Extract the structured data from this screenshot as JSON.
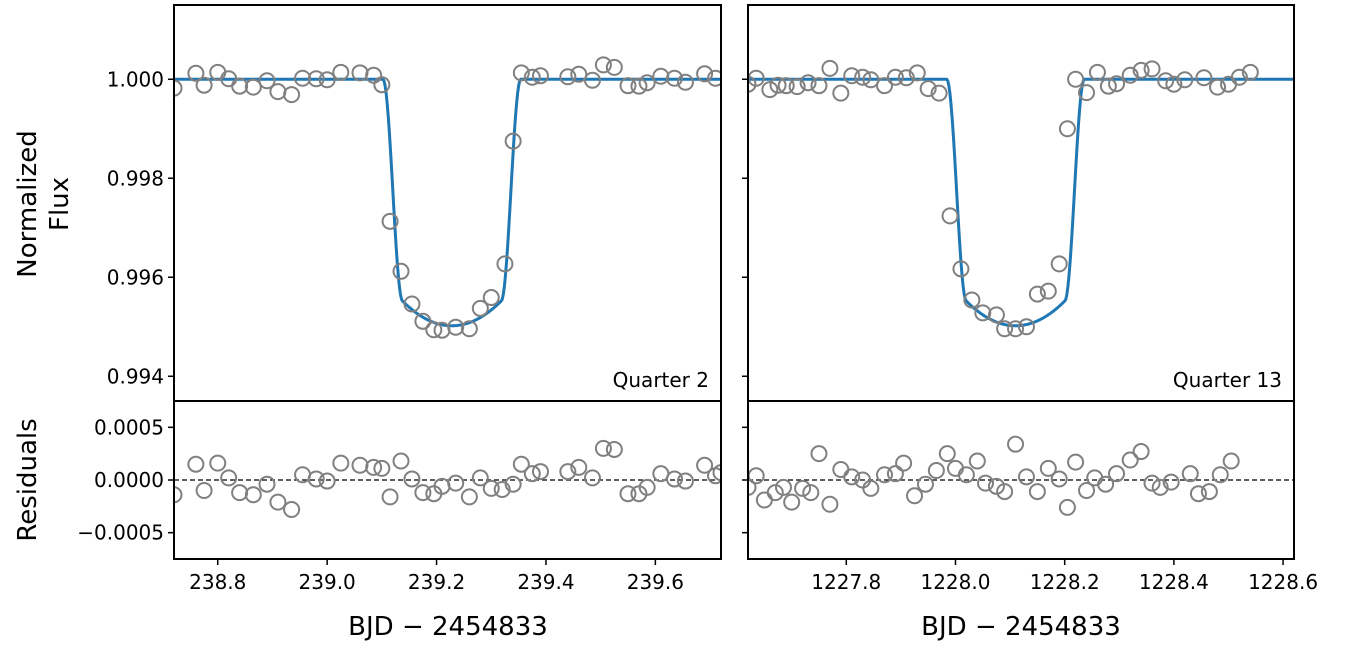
{
  "chart_data": {
    "type": "scatter",
    "shared_ylabel_top": [
      "Normalized",
      "Flux"
    ],
    "shared_ylabel_bottom": "Residuals",
    "shared_xlabel": "BJD − 2454833",
    "flux_ylim": [
      0.9935,
      1.0015
    ],
    "flux_yticks": [
      1.0,
      0.998,
      0.996,
      0.994
    ],
    "flux_ytick_labels": [
      "1.000",
      "0.998",
      "0.996",
      "0.994"
    ],
    "resid_ylim": [
      -0.00075,
      0.00075
    ],
    "resid_yticks": [
      0.0005,
      0.0,
      -0.0005
    ],
    "resid_ytick_labels": [
      "0.0005",
      "0.0000",
      "−0.0005"
    ],
    "marker_color": "#808080",
    "model_color": "#1f77b4",
    "panels": [
      {
        "annotation": "Quarter 2",
        "xlim": [
          238.72,
          239.72
        ],
        "xticks": [
          238.8,
          239.0,
          239.2,
          239.4,
          239.6
        ],
        "xtick_labels": [
          "238.8",
          "239.0",
          "239.2",
          "239.4",
          "239.6"
        ],
        "model": {
          "t0": 239.228,
          "depth": 0.00498,
          "half_total": 0.126,
          "half_flat": 0.09
        },
        "flux_points": [
          [
            238.72,
            0.99982
          ],
          [
            238.76,
            1.00012
          ],
          [
            238.775,
            0.99988
          ],
          [
            238.8,
            1.00014
          ],
          [
            238.82,
            1.00001
          ],
          [
            238.84,
            0.99986
          ],
          [
            238.865,
            0.99984
          ],
          [
            238.89,
            0.99997
          ],
          [
            238.91,
            0.99975
          ],
          [
            238.935,
            0.99969
          ],
          [
            238.955,
            1.00002
          ],
          [
            238.98,
            1.00001
          ],
          [
            239.0,
            0.99999
          ],
          [
            239.025,
            1.00014
          ],
          [
            239.06,
            1.00013
          ],
          [
            239.085,
            1.00008
          ],
          [
            239.1,
            0.99989
          ],
          [
            239.115,
            0.99713
          ],
          [
            239.135,
            0.99612
          ],
          [
            239.155,
            0.99546
          ],
          [
            239.175,
            0.99511
          ],
          [
            239.195,
            0.99494
          ],
          [
            239.21,
            0.99493
          ],
          [
            239.235,
            0.99499
          ],
          [
            239.26,
            0.99496
          ],
          [
            239.28,
            0.99537
          ],
          [
            239.3,
            0.99559
          ],
          [
            239.325,
            0.99627
          ],
          [
            239.34,
            0.99875
          ],
          [
            239.355,
            1.00013
          ],
          [
            239.375,
            1.00004
          ],
          [
            239.39,
            1.00007
          ],
          [
            239.44,
            1.00005
          ],
          [
            239.46,
            1.0001
          ],
          [
            239.485,
            0.99998
          ],
          [
            239.505,
            1.00029
          ],
          [
            239.525,
            1.00024
          ],
          [
            239.55,
            0.99987
          ],
          [
            239.57,
            0.99986
          ],
          [
            239.585,
            0.99993
          ],
          [
            239.61,
            1.00006
          ],
          [
            239.635,
            1.00002
          ],
          [
            239.655,
            0.99994
          ],
          [
            239.69,
            1.00011
          ],
          [
            239.71,
            1.00002
          ]
        ],
        "resid_points": [
          [
            238.72,
            -0.00014
          ],
          [
            238.76,
            0.00015
          ],
          [
            238.775,
            -0.0001
          ],
          [
            238.8,
            0.00016
          ],
          [
            238.82,
            2e-05
          ],
          [
            238.84,
            -0.00012
          ],
          [
            238.865,
            -0.00014
          ],
          [
            238.89,
            -4e-05
          ],
          [
            238.91,
            -0.00021
          ],
          [
            238.935,
            -0.00028
          ],
          [
            238.955,
            5e-05
          ],
          [
            238.98,
            1e-05
          ],
          [
            239.0,
            -1e-05
          ],
          [
            239.025,
            0.00016
          ],
          [
            239.06,
            0.00014
          ],
          [
            239.085,
            0.00012
          ],
          [
            239.1,
            0.00011
          ],
          [
            239.115,
            -0.00016
          ],
          [
            239.135,
            0.00018
          ],
          [
            239.155,
            1e-05
          ],
          [
            239.175,
            -0.00012
          ],
          [
            239.195,
            -0.00013
          ],
          [
            239.21,
            -6e-05
          ],
          [
            239.235,
            -3e-05
          ],
          [
            239.26,
            -0.00016
          ],
          [
            239.28,
            2e-05
          ],
          [
            239.3,
            -8e-05
          ],
          [
            239.32,
            -9e-05
          ],
          [
            239.34,
            -4e-05
          ],
          [
            239.355,
            0.00015
          ],
          [
            239.375,
            6e-05
          ],
          [
            239.39,
            8e-05
          ],
          [
            239.44,
            8e-05
          ],
          [
            239.46,
            0.00012
          ],
          [
            239.485,
            2e-05
          ],
          [
            239.505,
            0.0003
          ],
          [
            239.525,
            0.00029
          ],
          [
            239.55,
            -0.00013
          ],
          [
            239.57,
            -0.00013
          ],
          [
            239.585,
            -7e-05
          ],
          [
            239.61,
            6e-05
          ],
          [
            239.635,
            1e-05
          ],
          [
            239.655,
            -1e-05
          ],
          [
            239.69,
            0.00014
          ],
          [
            239.71,
            4e-05
          ],
          [
            239.72,
            7e-05
          ]
        ]
      },
      {
        "annotation": "Quarter 13",
        "xlim": [
          1227.62,
          1228.62
        ],
        "xticks": [
          1227.8,
          1228.0,
          1228.2,
          1228.4,
          1228.6
        ],
        "xtick_labels": [
          "1227.8",
          "1228.0",
          "1228.2",
          "1228.4",
          "1228.6"
        ],
        "model": {
          "t0": 1228.11,
          "depth": 0.00498,
          "half_total": 0.126,
          "half_flat": 0.09
        },
        "flux_points": [
          [
            1227.62,
            0.9999
          ],
          [
            1227.635,
            1.00002
          ],
          [
            1227.66,
            0.99979
          ],
          [
            1227.675,
            0.99988
          ],
          [
            1227.69,
            0.99987
          ],
          [
            1227.71,
            0.99985
          ],
          [
            1227.73,
            0.99993
          ],
          [
            1227.75,
            0.99987
          ],
          [
            1227.77,
            1.00022
          ],
          [
            1227.79,
            0.99972
          ],
          [
            1227.81,
            1.00007
          ],
          [
            1227.83,
            1.00004
          ],
          [
            1227.845,
            0.99999
          ],
          [
            1227.87,
            0.99987
          ],
          [
            1227.89,
            1.00004
          ],
          [
            1227.91,
            1.00003
          ],
          [
            1227.93,
            1.00013
          ],
          [
            1227.95,
            0.99981
          ],
          [
            1227.97,
            0.99972
          ],
          [
            1227.99,
            0.99724
          ],
          [
            1228.01,
            0.99617
          ],
          [
            1228.03,
            0.99554
          ],
          [
            1228.05,
            0.99528
          ],
          [
            1228.075,
            0.99524
          ],
          [
            1228.09,
            0.99496
          ],
          [
            1228.11,
            0.99496
          ],
          [
            1228.13,
            0.995
          ],
          [
            1228.15,
            0.99566
          ],
          [
            1228.17,
            0.99572
          ],
          [
            1228.19,
            0.99627
          ],
          [
            1228.205,
            0.999
          ],
          [
            1228.22,
            1.0
          ],
          [
            1228.24,
            0.99973
          ],
          [
            1228.26,
            1.00014
          ],
          [
            1228.28,
            0.99986
          ],
          [
            1228.295,
            0.99991
          ],
          [
            1228.32,
            1.00008
          ],
          [
            1228.34,
            1.00018
          ],
          [
            1228.36,
            1.00021
          ],
          [
            1228.385,
            0.99997
          ],
          [
            1228.4,
            0.9999
          ],
          [
            1228.42,
            0.99999
          ],
          [
            1228.455,
            1.00003
          ],
          [
            1228.48,
            0.99984
          ],
          [
            1228.5,
            0.9999
          ],
          [
            1228.52,
            1.00004
          ],
          [
            1228.54,
            1.00014
          ]
        ],
        "resid_points": [
          [
            1227.62,
            -7e-05
          ],
          [
            1227.635,
            4e-05
          ],
          [
            1227.65,
            -0.00019
          ],
          [
            1227.67,
            -0.00012
          ],
          [
            1227.685,
            -7e-05
          ],
          [
            1227.7,
            -0.00021
          ],
          [
            1227.72,
            -8e-05
          ],
          [
            1227.735,
            -0.00012
          ],
          [
            1227.75,
            0.00025
          ],
          [
            1227.77,
            -0.00023
          ],
          [
            1227.79,
            0.0001
          ],
          [
            1227.81,
            3e-05
          ],
          [
            1227.83,
            0.0
          ],
          [
            1227.845,
            -8e-05
          ],
          [
            1227.87,
            5e-05
          ],
          [
            1227.89,
            6e-05
          ],
          [
            1227.905,
            0.00016
          ],
          [
            1227.925,
            -0.00015
          ],
          [
            1227.945,
            -4e-05
          ],
          [
            1227.965,
            9e-05
          ],
          [
            1227.985,
            0.00025
          ],
          [
            1228.0,
            0.00011
          ],
          [
            1228.02,
            5e-05
          ],
          [
            1228.04,
            0.00018
          ],
          [
            1228.055,
            -3e-05
          ],
          [
            1228.075,
            -6e-05
          ],
          [
            1228.09,
            -0.00011
          ],
          [
            1228.11,
            0.00034
          ],
          [
            1228.13,
            3e-05
          ],
          [
            1228.15,
            -0.00011
          ],
          [
            1228.17,
            0.00011
          ],
          [
            1228.19,
            1e-05
          ],
          [
            1228.205,
            -0.00026
          ],
          [
            1228.22,
            0.00017
          ],
          [
            1228.24,
            -0.0001
          ],
          [
            1228.255,
            2e-05
          ],
          [
            1228.275,
            -4e-05
          ],
          [
            1228.295,
            6e-05
          ],
          [
            1228.32,
            0.00019
          ],
          [
            1228.34,
            0.00027
          ],
          [
            1228.36,
            -3e-05
          ],
          [
            1228.375,
            -7e-05
          ],
          [
            1228.395,
            -2e-05
          ],
          [
            1228.43,
            6e-05
          ],
          [
            1228.445,
            -0.00013
          ],
          [
            1228.465,
            -0.00011
          ],
          [
            1228.485,
            5e-05
          ],
          [
            1228.505,
            0.00018
          ]
        ]
      }
    ]
  }
}
